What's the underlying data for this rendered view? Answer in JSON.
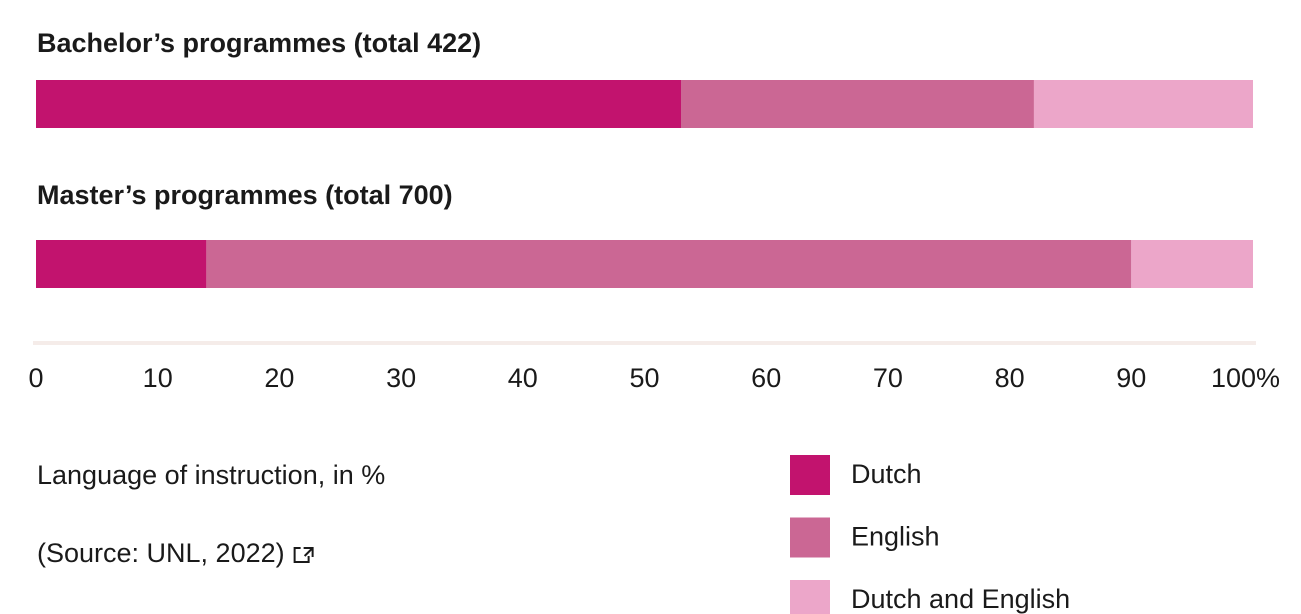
{
  "chart_data": {
    "type": "bar",
    "orientation": "horizontal",
    "stacked": true,
    "categories": [
      "Bachelor’s programmes (total 422)",
      "Master’s programmes (total 700)"
    ],
    "series": [
      {
        "name": "Dutch",
        "color": "#c2136e",
        "values": [
          53,
          14
        ]
      },
      {
        "name": "English",
        "color": "#cb6794",
        "values": [
          29,
          76
        ]
      },
      {
        "name": "Dutch and English",
        "color": "#eca6c9",
        "values": [
          18,
          10
        ]
      }
    ],
    "xlim": [
      0,
      100
    ],
    "xticks": [
      0,
      10,
      20,
      30,
      40,
      50,
      60,
      70,
      80,
      90,
      {
        "value": 100,
        "label": "100%"
      }
    ],
    "axis_color": "#f5ece9",
    "caption": "Language of instruction, in %",
    "source": "(Source: UNL, 2022)",
    "legend": "bottom-right"
  }
}
